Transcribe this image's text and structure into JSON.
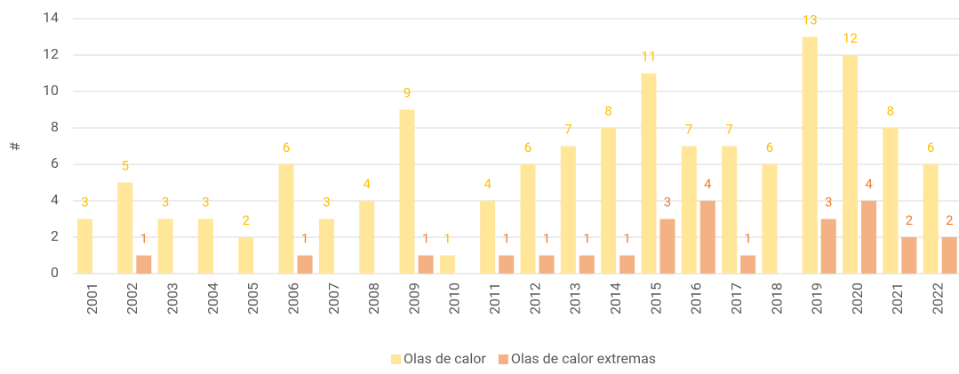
{
  "chart_data": {
    "type": "bar",
    "y_label": "#",
    "categories": [
      "2001",
      "2002",
      "2003",
      "2004",
      "2005",
      "2006",
      "2007",
      "2008",
      "2009",
      "2010",
      "2011",
      "2012",
      "2013",
      "2014",
      "2015",
      "2016",
      "2017",
      "2018",
      "2019",
      "2020",
      "2021",
      "2022"
    ],
    "series": [
      {
        "name": "Olas de calor",
        "color": "#FFE699",
        "label_color": "#FFC000",
        "values": [
          3,
          5,
          3,
          3,
          2,
          6,
          3,
          4,
          9,
          1,
          4,
          6,
          7,
          8,
          11,
          7,
          7,
          6,
          13,
          12,
          8,
          6
        ]
      },
      {
        "name": "Olas de calor extremas",
        "color": "#F4B183",
        "label_color": "#ED7D31",
        "values": [
          null,
          1,
          null,
          null,
          null,
          1,
          null,
          null,
          1,
          null,
          1,
          1,
          1,
          1,
          3,
          4,
          1,
          null,
          3,
          4,
          2,
          2
        ]
      }
    ],
    "ylim": [
      0,
      14
    ],
    "yticks": [
      0,
      2,
      4,
      6,
      8,
      10,
      12,
      14
    ],
    "grid": true,
    "legend": "bottom"
  }
}
